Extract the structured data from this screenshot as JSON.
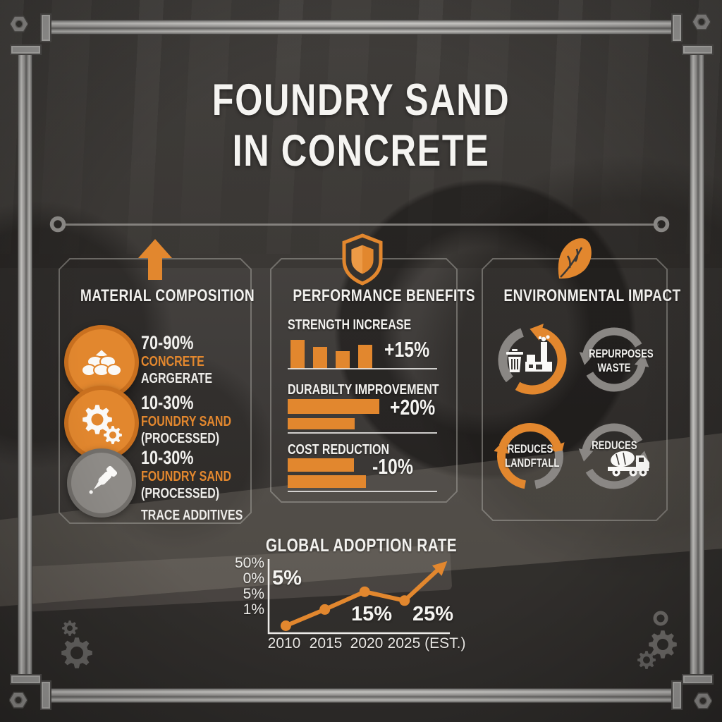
{
  "title": {
    "line1": "FOUNDRY SAND",
    "line2": "IN CONCRETE"
  },
  "sections": {
    "material": {
      "heading": "MATERIAL COMPOSITION",
      "items": [
        {
          "percent": "70-90%",
          "name": "CONCRETE",
          "detail": "AGRGERATE",
          "extra": ""
        },
        {
          "percent": "10-30%",
          "name": "FOUNDRY SAND",
          "detail": "(PROCESSED)",
          "extra": ""
        },
        {
          "percent": "10-30%",
          "name": "FOUNDRY SAND",
          "detail": "(PROCESSED)",
          "extra": "TRACE ADDITIVES"
        }
      ]
    },
    "performance": {
      "heading": "PERFORMANCE BENEFITS",
      "stats": [
        {
          "label": "STRENGTH INCREASE",
          "value": "+15%"
        },
        {
          "label": "DURABILTY IMPROVEMENT",
          "value": "+20%"
        },
        {
          "label": "COST REDUCTION",
          "value": "-10%"
        }
      ]
    },
    "environment": {
      "heading": "ENVIRONMENTAL IMPACT",
      "cells": [
        {
          "label": ""
        },
        {
          "label": "REPURPOSES WASTE"
        },
        {
          "label": "REDUCES LANDFTALL"
        },
        {
          "label": "REDUCES"
        }
      ]
    },
    "adoption": {
      "heading": "GLOBAL ADOPTION RATE"
    }
  },
  "colors": {
    "accent": "#E2872E",
    "accent_dark": "#C9701F",
    "white": "#F2F1EE",
    "metal": "#ADACAA",
    "gray_icon": "#8E8B87"
  },
  "chart_data": [
    {
      "type": "bar",
      "title": "STRENGTH INCREASE",
      "annotation": "+15%",
      "orientation": "vertical",
      "relative_heights": [
        1.0,
        0.76,
        0.61,
        0.83
      ],
      "axis_labels": "none"
    },
    {
      "type": "bar",
      "title": "DURABILTY IMPROVEMENT",
      "annotation": "+20%",
      "orientation": "horizontal",
      "relative_widths": [
        1.0,
        0.73
      ],
      "axis_labels": "none"
    },
    {
      "type": "bar",
      "title": "COST REDUCTION",
      "annotation": "-10%",
      "orientation": "horizontal",
      "relative_widths": [
        0.85,
        1.0
      ],
      "axis_labels": "none"
    },
    {
      "type": "line",
      "title": "GLOBAL ADOPTION RATE",
      "x_labels": [
        "2010",
        "2015",
        "2020",
        "2025 (EST.)"
      ],
      "y_tick_labels": [
        "50%",
        "0%",
        "5%",
        "1%"
      ],
      "point_labels": [
        "5%",
        "",
        "15%",
        "25%"
      ],
      "points_norm": [
        [
          0.095,
          0.9
        ],
        [
          0.31,
          0.68
        ],
        [
          0.53,
          0.44
        ],
        [
          0.75,
          0.56
        ]
      ],
      "arrow_tip_norm": [
        0.98,
        0.04
      ],
      "line_color": "#E2872E",
      "grid": false
    }
  ]
}
